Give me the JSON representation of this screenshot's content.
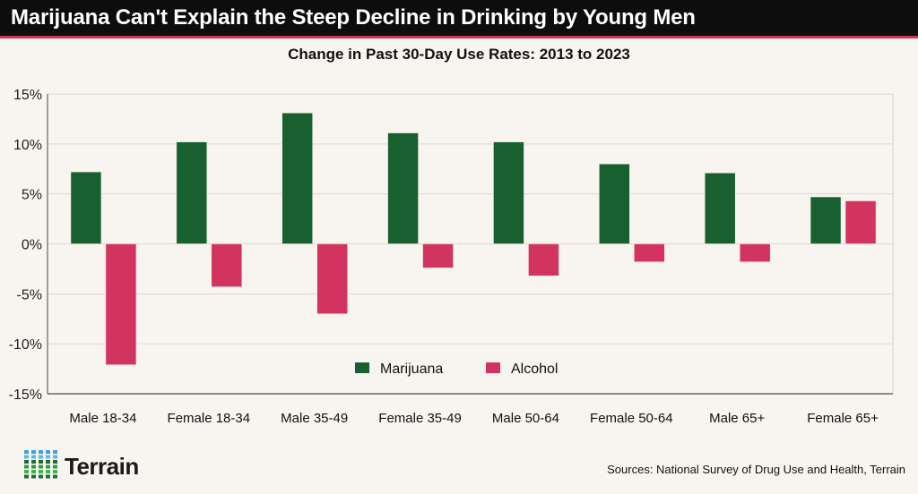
{
  "header": {
    "title": "Marijuana Can't Explain the Steep Decline in Drinking by Young Men"
  },
  "chart_data": {
    "type": "bar",
    "title": "Change in Past 30-Day Use Rates: 2013 to 2023",
    "categories": [
      "Male 18-34",
      "Female 18-34",
      "Male 35-49",
      "Female 35-49",
      "Male 50-64",
      "Female 50-64",
      "Male 65+",
      "Female 65+"
    ],
    "series": [
      {
        "name": "Marijuana",
        "color": "#18602f",
        "values": [
          7.2,
          10.2,
          13.1,
          11.1,
          10.2,
          8.0,
          7.1,
          4.7
        ]
      },
      {
        "name": "Alcohol",
        "color": "#d3335f",
        "values": [
          -12.1,
          -4.3,
          -7.0,
          -2.4,
          -3.2,
          -1.8,
          -1.8,
          4.3
        ]
      }
    ],
    "ylim": [
      -15,
      15
    ],
    "yticks": [
      15,
      10,
      5,
      0,
      -5,
      -10,
      -15
    ],
    "ytick_labels": [
      "15%",
      "10%",
      "5%",
      "0%",
      "-5%",
      "-10%",
      "-15%"
    ],
    "grid": true,
    "legend": "bottom-center"
  },
  "footer": {
    "logo": "Terrain",
    "sources": "Sources: National Survey of Drug Use and Health, Terrain"
  }
}
